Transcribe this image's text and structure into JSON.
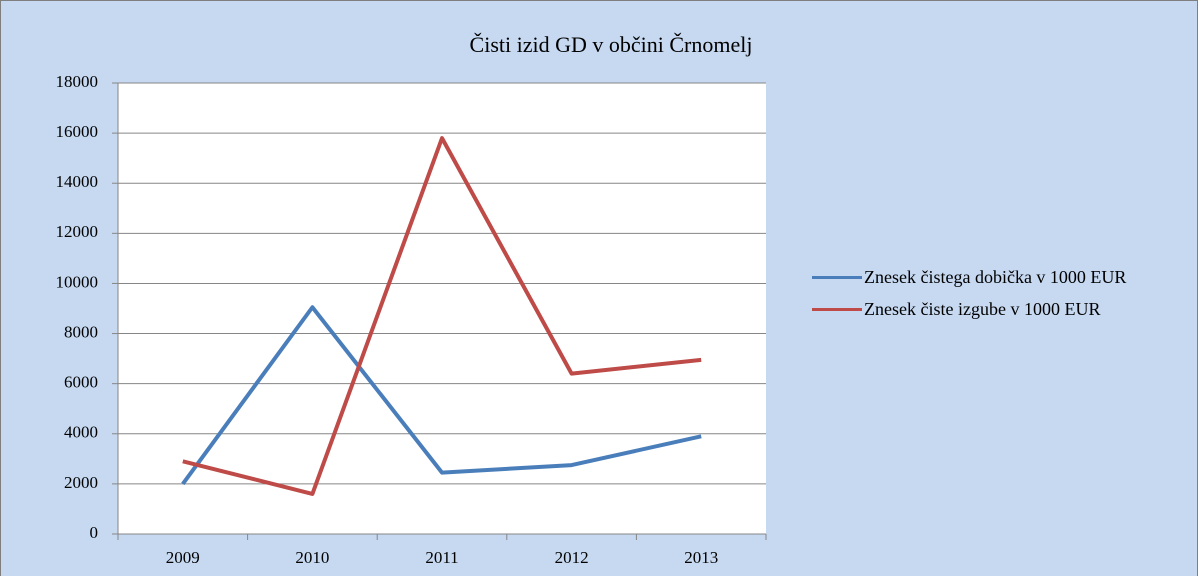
{
  "chart_data": {
    "type": "line",
    "title": "Čisti izid GD v občini Črnomelj",
    "categories": [
      "2009",
      "2010",
      "2011",
      "2012",
      "2013"
    ],
    "series": [
      {
        "name": "Znesek čistega dobička v 1000 EUR",
        "color": "#4a7ebb",
        "values": [
          2000,
          9050,
          2450,
          2750,
          3900
        ]
      },
      {
        "name": "Znesek čiste izgube v 1000 EUR",
        "color": "#be4b48",
        "values": [
          2900,
          1600,
          15800,
          6400,
          6950
        ]
      }
    ],
    "ylim": [
      0,
      18000
    ],
    "yticks": [
      0,
      2000,
      4000,
      6000,
      8000,
      10000,
      12000,
      14000,
      16000,
      18000
    ],
    "grid": true,
    "legend": "right"
  }
}
